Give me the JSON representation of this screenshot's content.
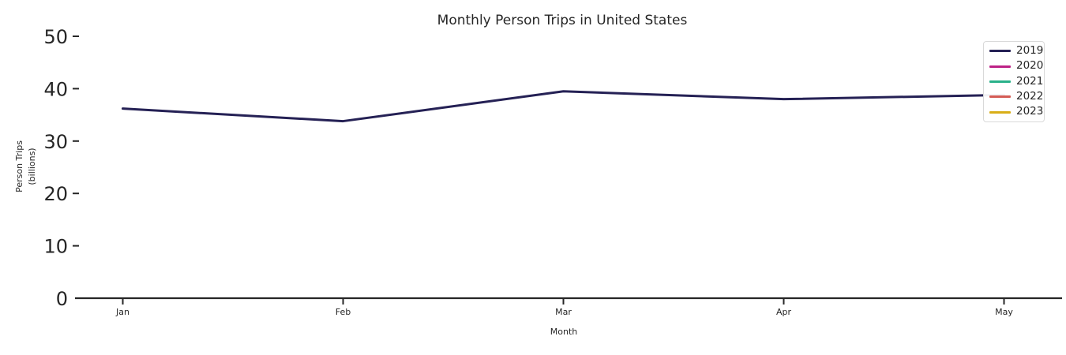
{
  "figure": {
    "background": "#ffffff"
  },
  "chart_data": {
    "type": "line",
    "title": "Monthly Person Trips in United States",
    "xlabel": "Month",
    "ylabel_line1": "Person Trips",
    "ylabel_line2": "(billions)",
    "categories": [
      "Jan",
      "Feb",
      "Mar",
      "Apr",
      "May"
    ],
    "series": [
      {
        "name": "2019",
        "color": "#252155",
        "values": [
          36.2,
          33.8,
          39.5,
          38.0,
          38.8
        ]
      },
      {
        "name": "2020",
        "color": "#bd2286",
        "values": []
      },
      {
        "name": "2021",
        "color": "#29b18a",
        "values": []
      },
      {
        "name": "2022",
        "color": "#d45c55",
        "values": []
      },
      {
        "name": "2023",
        "color": "#d9ae17",
        "values": []
      }
    ],
    "ylim": [
      0,
      50
    ],
    "yticks": [
      0,
      10,
      20,
      30,
      40,
      50
    ],
    "legend_position": "upper right",
    "grid": false,
    "axis_color": "#262626",
    "text_color": "#262626"
  }
}
